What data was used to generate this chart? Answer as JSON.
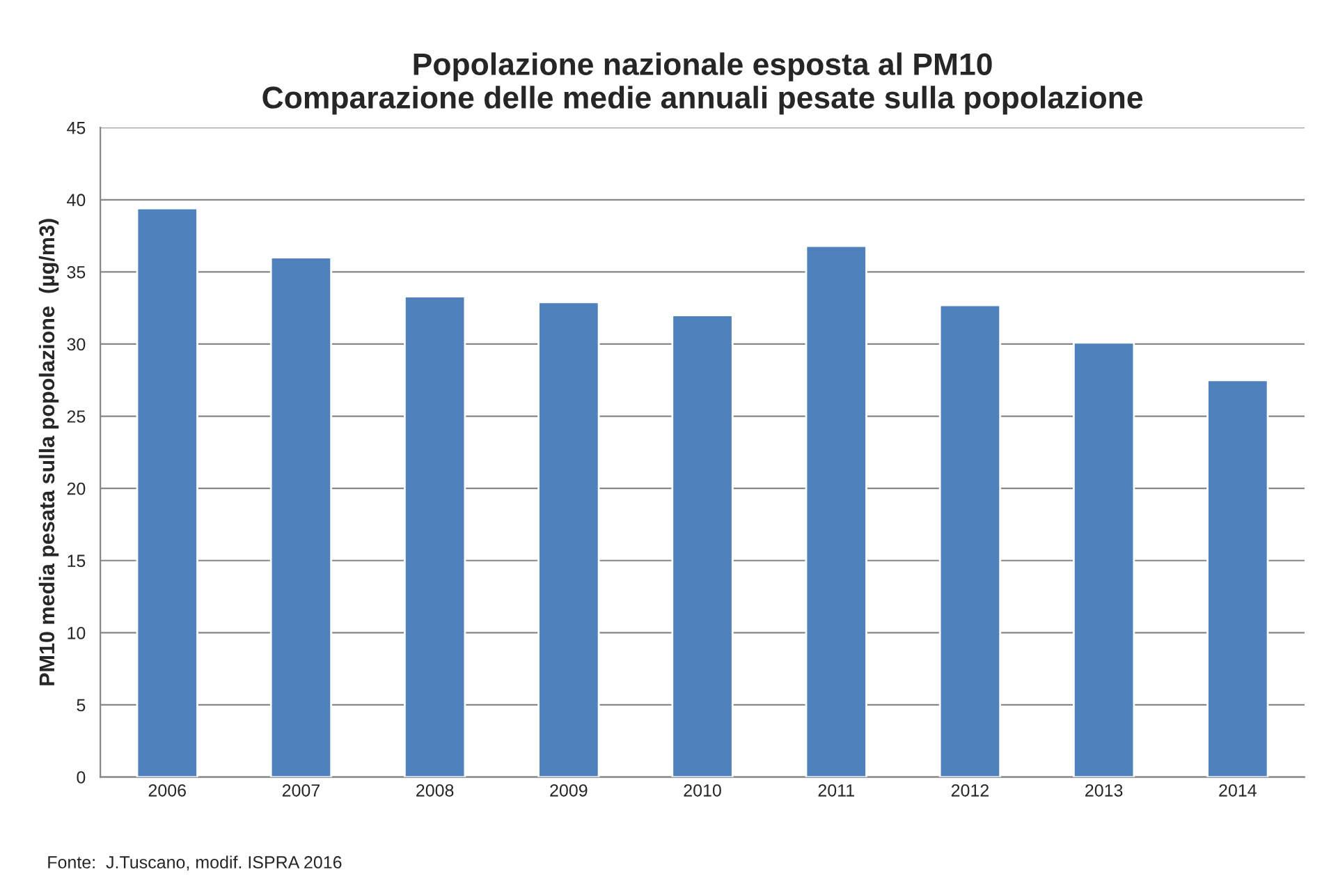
{
  "chart_data": {
    "type": "bar",
    "title": "Popolazione nazionale esposta al PM10\nComparazione delle medie annuali pesate sulla popolazione",
    "ylabel": "PM10 media pesata sulla popolazione  (µg/m3)",
    "categories": [
      "2006",
      "2007",
      "2008",
      "2009",
      "2010",
      "2011",
      "2012",
      "2013",
      "2014"
    ],
    "values": [
      39.4,
      36.0,
      33.3,
      32.9,
      32.0,
      36.8,
      32.7,
      30.1,
      27.5
    ],
    "color": "#4f81bd",
    "ylim": [
      0,
      45
    ],
    "yticks": [
      0,
      5,
      10,
      15,
      20,
      25,
      30,
      35,
      40,
      45
    ],
    "grid": "y",
    "legend": false,
    "annotations": [
      "Fonte:  J.Tuscano, modif. ISPRA 2016"
    ]
  }
}
